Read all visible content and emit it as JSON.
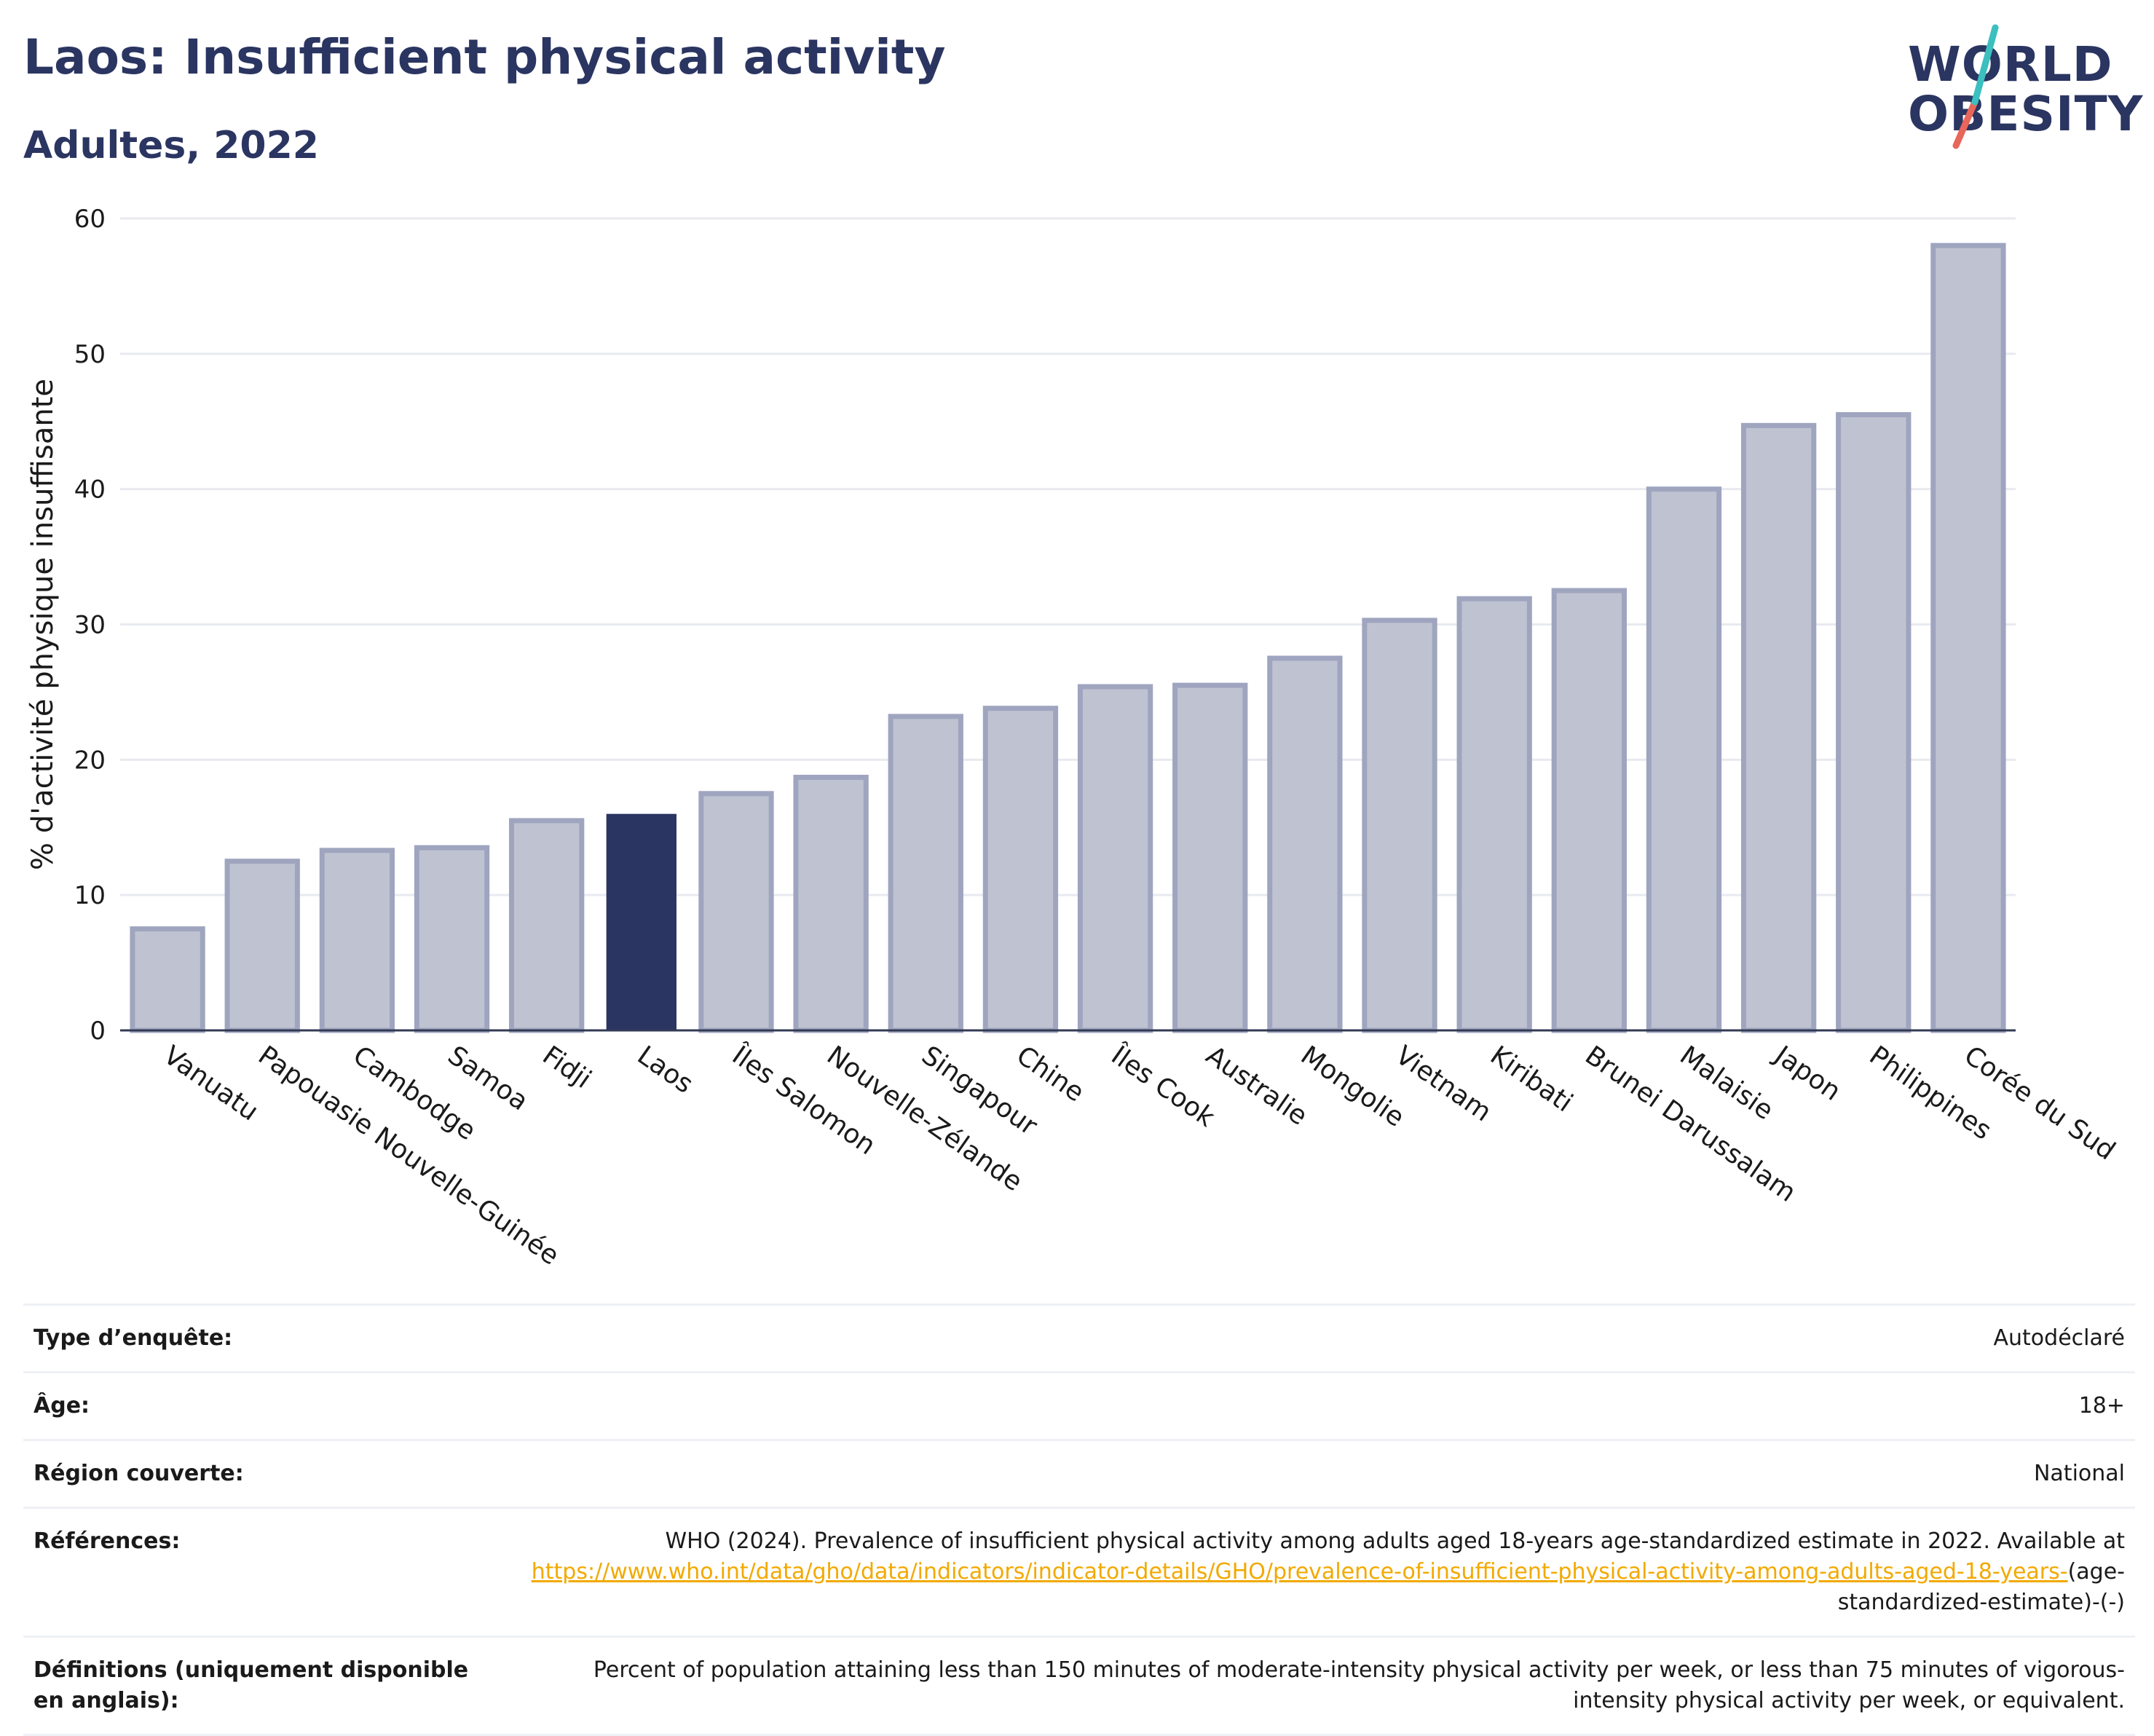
{
  "header": {
    "title": "Laos: Insufficient physical activity",
    "subtitle": "Adultes, 2022",
    "logo_line1": "WORLD",
    "logo_line2": "OBESITY"
  },
  "colors": {
    "bar": "#bfc3d1",
    "bar_border": "#9fa5bf",
    "highlight": "#2b3561",
    "text": "#2b3561",
    "grid": "#e8eaf0",
    "link": "#f2a900",
    "logo_teal": "#3bbfbf",
    "logo_red": "#e8665a"
  },
  "chart_data": {
    "type": "bar",
    "title": "Laos: Insufficient physical activity",
    "subtitle": "Adultes, 2022",
    "xlabel": "",
    "ylabel": "% d'activité physique insuffisante",
    "ylim": [
      0,
      60
    ],
    "yticks": [
      0,
      10,
      20,
      30,
      40,
      50,
      60
    ],
    "grid": true,
    "highlight": "Laos",
    "categories": [
      "Vanuatu",
      "Papouasie Nouvelle-Guinée",
      "Cambodge",
      "Samoa",
      "Fidji",
      "Laos",
      "Îles Salomon",
      "Nouvelle-Zélande",
      "Singapour",
      "Chine",
      "Îles Cook",
      "Australie",
      "Mongolie",
      "Vietnam",
      "Kiribati",
      "Brunei Darussalam",
      "Malaisie",
      "Japon",
      "Philippines",
      "Corée du Sud"
    ],
    "values": [
      7.5,
      12.5,
      13.3,
      13.5,
      15.5,
      16.0,
      17.5,
      18.7,
      23.2,
      23.8,
      25.4,
      25.5,
      27.5,
      30.3,
      31.9,
      32.5,
      40.0,
      44.7,
      45.5,
      58.0
    ]
  },
  "info": [
    {
      "key": "Type d’enquête:",
      "value": "Autodéclaré"
    },
    {
      "key": "Âge:",
      "value": "18+"
    },
    {
      "key": "Région couverte:",
      "value": "National"
    },
    {
      "key": "Références:",
      "value_pre": "WHO (2024). Prevalence of insufficient physical activity among adults aged 18-years age-standardized estimate in 2022. Available at",
      "link": "https://www.who.int/data/gho/data/indicators/indicator-details/GHO/prevalence-of-insufficient-physical-activity-among-adults-aged-18-years-",
      "value_post": "(age-standardized-estimate)-(-)"
    },
    {
      "key": "Définitions (uniquement disponible en anglais):",
      "value": "Percent of population attaining less than 150 minutes of moderate-intensity physical activity per week, or less than 75 minutes of vigorous-intensity physical activity per week, or equivalent."
    }
  ]
}
